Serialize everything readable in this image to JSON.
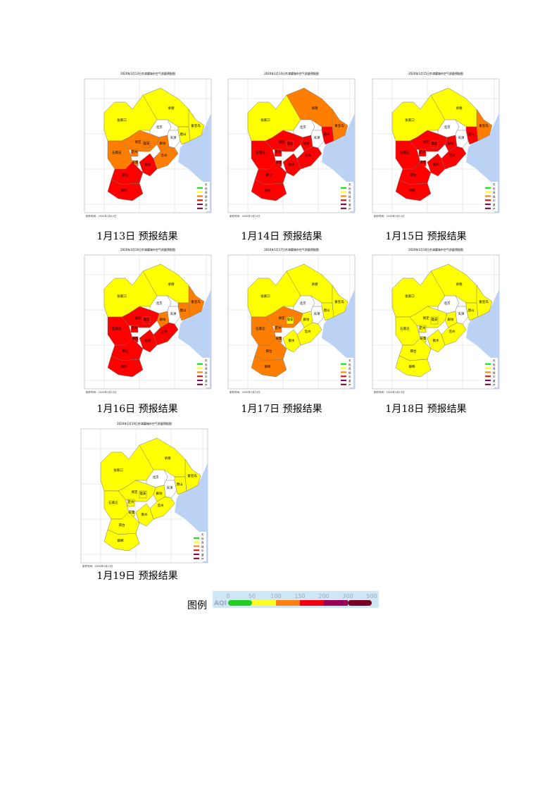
{
  "region_names": [
    "张家口",
    "承德",
    "北京",
    "天津",
    "唐山",
    "秦皇岛",
    "廊坊",
    "保定",
    "雄安",
    "沧州",
    "衡水",
    "石家庄",
    "辛集",
    "定州",
    "邢台",
    "邯郸"
  ],
  "map_legend": [
    "无",
    "优",
    "良",
    "轻",
    "中",
    "重",
    "严"
  ],
  "colors": {
    "W": "#ffffff",
    "G": "#00e400",
    "Y": "#ffff00",
    "O": "#ff7e00",
    "R": "#ff0000",
    "P": "#99004c",
    "M": "#7e0023",
    "sea": "#bcd2f5"
  },
  "maps": [
    {
      "title": "2020年1月13日京津冀城市空气质量预报图",
      "footer": "制作时间：2020年1月12日",
      "caption": "1月13日 预报结果",
      "levels": [
        "Y",
        "Y",
        "W",
        "W",
        "Y",
        "Y",
        "O",
        "O",
        "O",
        "O",
        "R",
        "O",
        "O",
        "O",
        "R",
        "R"
      ]
    },
    {
      "title": "2020年1月14日京津冀城市空气质量预报图",
      "footer": "制作时间：2020年1月12日",
      "caption": "1月14日 预报结果",
      "levels": [
        "Y",
        "O",
        "W",
        "W",
        "R",
        "O",
        "R",
        "R",
        "R",
        "R",
        "R",
        "R",
        "R",
        "R",
        "R",
        "R"
      ]
    },
    {
      "title": "2020年1月15日京津冀城市空气质量预报图",
      "footer": "制作时间：2020年1月12日",
      "caption": "1月15日 预报结果",
      "levels": [
        "Y",
        "Y",
        "W",
        "W",
        "R",
        "O",
        "R",
        "R",
        "R",
        "R",
        "R",
        "R",
        "R",
        "R",
        "R",
        "R"
      ]
    },
    {
      "title": "2020年1月16日京津冀城市空气质量预报图",
      "footer": "制作时间：2020年1月13日",
      "caption": "1月16日 预报结果",
      "levels": [
        "Y",
        "Y",
        "W",
        "W",
        "O",
        "O",
        "O",
        "R",
        "R",
        "R",
        "R",
        "R",
        "R",
        "R",
        "R",
        "R"
      ]
    },
    {
      "title": "2020年1月17日京津冀城市空气质量预报图",
      "footer": "制作时间：2020年1月13日",
      "caption": "1月17日 预报结果",
      "levels": [
        "Y",
        "Y",
        "W",
        "W",
        "Y",
        "Y",
        "Y",
        "O",
        "Y",
        "Y",
        "Y",
        "O",
        "O",
        "O",
        "O",
        "O"
      ]
    },
    {
      "title": "2020年1月18日京津冀城市空气质量预报图",
      "footer": "制作时间：2020年1月13日",
      "caption": "1月18日 预报结果",
      "levels": [
        "Y",
        "Y",
        "W",
        "W",
        "Y",
        "Y",
        "Y",
        "Y",
        "Y",
        "Y",
        "Y",
        "Y",
        "Y",
        "Y",
        "Y",
        "Y"
      ]
    },
    {
      "title": "2020年1月19日京津冀城市空气质量预报图",
      "footer": "制作时间：2020年1月13日",
      "caption": "1月19日 预报结果",
      "levels": [
        "Y",
        "Y",
        "W",
        "W",
        "Y",
        "Y",
        "Y",
        "Y",
        "Y",
        "Y",
        "Y",
        "Y",
        "Y",
        "Y",
        "Y",
        "Y"
      ]
    }
  ],
  "legend": {
    "label": "图例",
    "aqi": "AQI",
    "ticks": [
      "0",
      "50",
      "100",
      "150",
      "200",
      "300",
      "500"
    ],
    "colors": [
      "#22cc22",
      "#ffff22",
      "#ff8011",
      "#ee0011",
      "#990055",
      "#770022"
    ]
  }
}
